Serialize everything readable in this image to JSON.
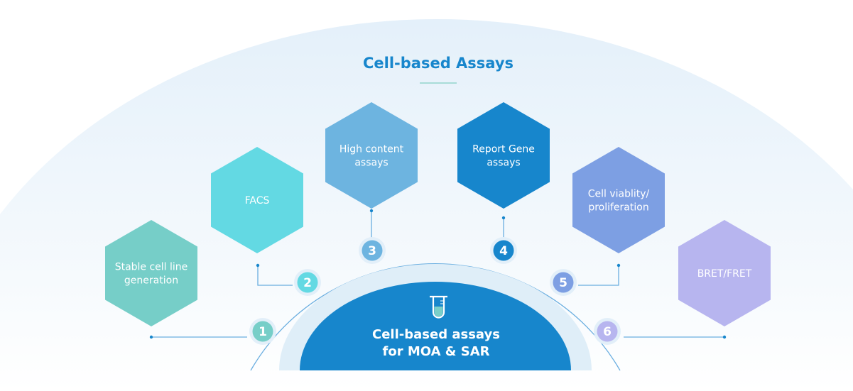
{
  "title": "Cell-based Assays",
  "center": {
    "line1": "Cell-based assays",
    "line2": "for MOA & SAR",
    "icon": "test-tube-icon"
  },
  "steps": [
    {
      "number": "1",
      "lines": [
        "Stable cell line",
        "generation"
      ],
      "color": "#76cec8"
    },
    {
      "number": "2",
      "lines": [
        "FACS"
      ],
      "color": "#63d9e3"
    },
    {
      "number": "3",
      "lines": [
        "High content",
        "assays"
      ],
      "color": "#6db4e0"
    },
    {
      "number": "4",
      "lines": [
        "Report Gene",
        "assays"
      ],
      "color": "#1786cc"
    },
    {
      "number": "5",
      "lines": [
        "Cell viablity/",
        "proliferation"
      ],
      "color": "#7d9fe3"
    },
    {
      "number": "6",
      "lines": [
        "BRET/FRET"
      ],
      "color": "#b7b5ef"
    }
  ],
  "colors": {
    "accent": "#1786cc",
    "arc": "#6aaee0",
    "ring": "#dfeef8",
    "underline": "#a8dcd8"
  }
}
